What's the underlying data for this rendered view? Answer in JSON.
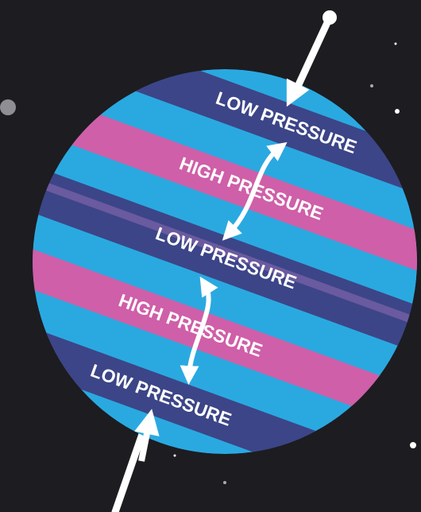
{
  "bands": [
    {
      "label": "LOW PRESSURE"
    },
    {
      "label": "HIGH PRESSURE"
    },
    {
      "label": "LOW PRESSURE"
    },
    {
      "label": "HIGH PRESSURE"
    },
    {
      "label": "LOW PRESSURE"
    }
  ]
}
